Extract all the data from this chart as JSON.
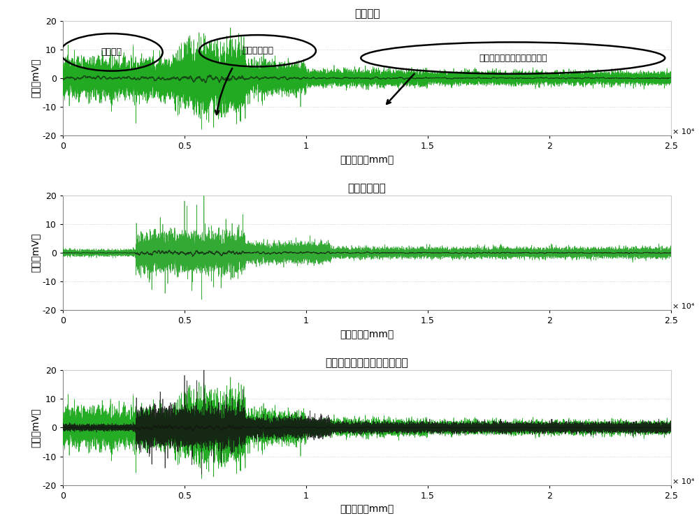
{
  "title1": "原始信号",
  "title2": "预处理后信号",
  "title3": "原始信号与预处理信号的对比",
  "xlabel": "采样距离（mm）",
  "ylabel": "幅値（mV）",
  "xlim": [
    0,
    25000
  ],
  "ylim": [
    -20,
    20
  ],
  "xticks": [
    0,
    5000,
    10000,
    15000,
    20000,
    25000
  ],
  "xticklabels": [
    "0",
    "0.5",
    "1",
    "1.5",
    "2",
    "2.5"
  ],
  "yticks": [
    -20,
    -10,
    0,
    10,
    20
  ],
  "x10label": "× 10⁴",
  "annotation1": "高频噪声",
  "annotation2": "抖动漂移干扰",
  "annotation3": "钗丝绳晃动引起的漂移伴高频",
  "n_points": 25000,
  "seed": 42,
  "bg_color": "#ffffff",
  "grid_color": "#c8c8c8",
  "color_green": "#00aa00",
  "color_gray": "#888888",
  "color_black": "#111111",
  "color_darkgray": "#444444"
}
